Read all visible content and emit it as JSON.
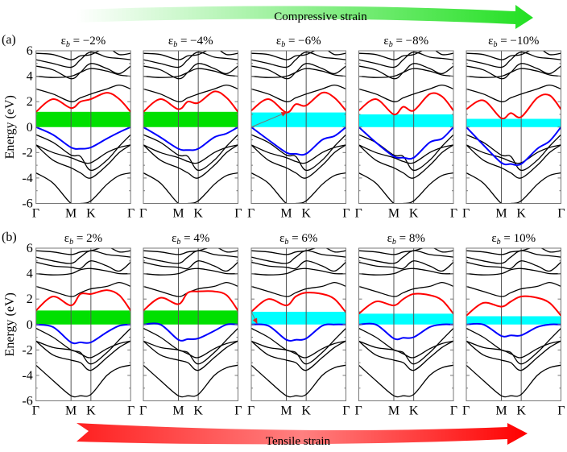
{
  "banners": {
    "top": {
      "text": "Compressive strain",
      "color": "#22e022",
      "direction": "right"
    },
    "bottom": {
      "text": "Tensile strain",
      "color": "#ff1010",
      "direction": "right"
    }
  },
  "chart_data": {
    "type": "line",
    "ylabel": "Energy (eV)",
    "ylim": [
      -6,
      6
    ],
    "yticks": [
      "6",
      "4",
      "2",
      "0",
      "-2",
      "-4",
      "-6"
    ],
    "ytick_values": [
      6,
      4,
      2,
      0,
      -2,
      -4,
      -6
    ],
    "kpath_labels": [
      "Γ",
      "M",
      "K",
      "Γ"
    ],
    "kpath_positions": [
      0,
      0.37,
      0.58,
      1
    ],
    "k_samples": [
      0,
      0.18,
      0.37,
      0.47,
      0.58,
      0.75,
      0.88,
      1
    ],
    "colors": {
      "cbm_band": "#ff0000",
      "vbm_band": "#0000ff",
      "other_bands": "#000000",
      "gap_direct": "#00e000",
      "gap_indirect": "#00ffff",
      "arrow": "#e02020"
    },
    "rows": [
      {
        "label": "(a)",
        "other_bands": [
          [
            -3.6,
            -4.4,
            -6.0,
            -6.0,
            -5.8,
            -4.5,
            -3.8,
            -3.6
          ],
          [
            -1.4,
            -2.0,
            -2.4,
            -2.7,
            -2.8,
            -2.0,
            -1.6,
            -1.4
          ],
          [
            -1.4,
            -2.6,
            -3.2,
            -3.6,
            -4.0,
            -3.0,
            -2.0,
            -1.4
          ],
          [
            -0.6,
            -1.2,
            -2.2,
            -2.3,
            -3.4,
            -2.6,
            -1.5,
            -0.6
          ],
          [
            3.0,
            2.6,
            2.0,
            2.3,
            2.6,
            3.0,
            3.3,
            3.0
          ],
          [
            4.0,
            3.9,
            4.0,
            4.3,
            4.6,
            4.4,
            4.1,
            4.0
          ],
          [
            4.8,
            4.5,
            3.8,
            4.3,
            5.0,
            4.6,
            4.2,
            4.8
          ],
          [
            5.3,
            5.0,
            4.7,
            5.3,
            5.9,
            5.5,
            5.4,
            5.3
          ],
          [
            5.8,
            5.7,
            5.3,
            5.6,
            5.7,
            6.2,
            5.7,
            5.8
          ]
        ],
        "panels": [
          {
            "symbol": "ε",
            "sub": "b",
            "value": " = −2%",
            "gap": [
              0,
              1.2
            ],
            "gap_type": "direct",
            "cbm": [
              1.2,
              2.2,
              1.5,
              2.0,
              2.2,
              2.7,
              2.2,
              1.2
            ],
            "vbm": [
              0,
              -0.6,
              -1.6,
              -1.7,
              -1.6,
              -0.9,
              -0.4,
              0
            ]
          },
          {
            "symbol": "ε",
            "sub": "b",
            "value": " = −4%",
            "gap": [
              0,
              1.2
            ],
            "gap_type": "direct",
            "cbm": [
              1.2,
              2.2,
              1.4,
              2.0,
              1.9,
              2.8,
              2.3,
              1.2
            ],
            "vbm": [
              0,
              -0.8,
              -1.7,
              -1.8,
              -1.7,
              -0.8,
              -0.5,
              0
            ]
          },
          {
            "symbol": "ε",
            "sub": "b",
            "value": " = −6%",
            "gap": [
              0,
              1.15
            ],
            "gap_type": "indirect",
            "cbm": [
              1.3,
              2.2,
              1.15,
              1.8,
              1.7,
              2.7,
              2.3,
              1.3
            ],
            "vbm": [
              0,
              -1.0,
              -2.0,
              -2.1,
              -2.1,
              -1.0,
              -0.7,
              0
            ],
            "arrow": {
              "from": [
                0,
                0
              ],
              "to": [
                0.37,
                1.15
              ]
            }
          },
          {
            "symbol": "ε",
            "sub": "b",
            "value": " = −8%",
            "gap": [
              0,
              1.0
            ],
            "gap_type": "indirect",
            "cbm": [
              1.3,
              2.2,
              1.0,
              1.6,
              1.3,
              2.6,
              2.4,
              1.3
            ],
            "vbm": [
              0,
              -1.2,
              -2.3,
              -2.4,
              -2.4,
              -1.2,
              -0.9,
              0
            ]
          },
          {
            "symbol": "ε",
            "sub": "b",
            "value": " = −10%",
            "gap": [
              0,
              0.65
            ],
            "gap_type": "indirect",
            "cbm": [
              1.4,
              2.1,
              0.7,
              1.1,
              0.8,
              2.3,
              2.5,
              1.4
            ],
            "vbm": [
              0,
              -1.4,
              -2.8,
              -2.9,
              -2.9,
              -1.7,
              -1.1,
              0
            ]
          }
        ]
      },
      {
        "label": "(b)",
        "other_bands": [
          [
            -3.2,
            -4.4,
            -5.6,
            -5.6,
            -5.5,
            -4.0,
            -3.4,
            -3.2
          ],
          [
            -1.3,
            -1.8,
            -2.0,
            -2.3,
            -2.6,
            -1.9,
            -1.5,
            -1.3
          ],
          [
            -1.3,
            -2.4,
            -2.8,
            -3.0,
            -3.6,
            -2.6,
            -1.8,
            -1.3
          ],
          [
            -0.3,
            -1.0,
            -2.0,
            -2.2,
            -3.1,
            -2.2,
            -1.2,
            -0.3
          ],
          [
            3.0,
            2.6,
            2.2,
            2.5,
            2.8,
            3.0,
            3.3,
            3.0
          ],
          [
            4.0,
            3.9,
            4.0,
            4.3,
            4.4,
            4.2,
            4.0,
            4.0
          ],
          [
            4.9,
            4.6,
            4.5,
            4.4,
            5.0,
            4.6,
            4.2,
            4.9
          ],
          [
            5.3,
            5.0,
            4.8,
            5.3,
            5.8,
            5.5,
            5.4,
            5.3
          ],
          [
            5.8,
            5.7,
            5.5,
            5.7,
            5.8,
            6.1,
            5.7,
            5.8
          ]
        ],
        "panels": [
          {
            "symbol": "ε",
            "sub": "b",
            "value": " = 2%",
            "gap": [
              0,
              1.1
            ],
            "gap_type": "direct",
            "cbm": [
              1.1,
              2.2,
              1.5,
              2.4,
              2.4,
              2.7,
              2.3,
              1.1
            ],
            "vbm": [
              0,
              -0.2,
              -1.4,
              -1.4,
              -1.4,
              -0.6,
              -0.1,
              0
            ]
          },
          {
            "symbol": "ε",
            "sub": "b",
            "value": " = 4%",
            "gap": [
              0,
              1.1
            ],
            "gap_type": "direct",
            "cbm": [
              1.1,
              2.1,
              1.6,
              2.5,
              2.6,
              2.6,
              2.3,
              1.1
            ],
            "vbm": [
              0,
              0,
              -1.2,
              -1.15,
              -1.1,
              -0.5,
              0,
              0
            ]
          },
          {
            "symbol": "ε",
            "sub": "b",
            "value": " = 6%",
            "gap": [
              0,
              1.0
            ],
            "gap_type": "indirect",
            "cbm": [
              1.0,
              2.0,
              1.5,
              2.2,
              2.5,
              2.4,
              2.0,
              0.95
            ],
            "vbm": [
              0,
              -0.1,
              -1.2,
              -1.2,
              -1.1,
              -0.1,
              0,
              0
            ],
            "arrow": {
              "from": [
                0,
                1.0
              ],
              "to": [
                0.06,
                0.1
              ]
            }
          },
          {
            "symbol": "ε",
            "sub": "b",
            "value": " = 8%",
            "gap": [
              0,
              0.85
            ],
            "gap_type": "indirect",
            "cbm": [
              0.85,
              1.8,
              1.5,
              2.0,
              2.4,
              2.3,
              1.9,
              0.85
            ],
            "vbm": [
              0,
              0,
              -1.1,
              -1.05,
              -1.0,
              -0.2,
              0,
              0
            ]
          },
          {
            "symbol": "ε",
            "sub": "b",
            "value": " = 10%",
            "gap": [
              0,
              0.65
            ],
            "gap_type": "indirect",
            "cbm": [
              0.7,
              1.7,
              1.4,
              1.8,
              2.2,
              2.1,
              1.7,
              0.7
            ],
            "vbm": [
              0,
              0,
              -0.9,
              -0.85,
              -0.85,
              -0.2,
              0,
              0
            ]
          }
        ]
      }
    ]
  }
}
